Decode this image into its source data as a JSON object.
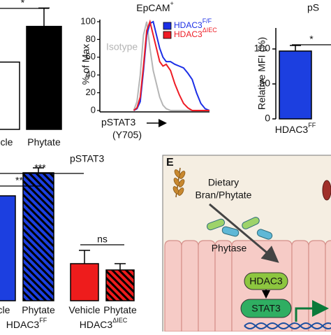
{
  "chart_data": [
    {
      "type": "bar",
      "categories": [
        "hicle",
        "Phytate"
      ],
      "values": [
        66,
        101
      ],
      "errors": [
        null,
        18
      ],
      "colors": [
        "#ffffff",
        "#000000"
      ],
      "ylim": [
        0,
        120
      ],
      "annotations": [
        "*"
      ]
    },
    {
      "type": "line",
      "title": "EpCAM",
      "title_sup": "+",
      "ylabel": "% of Max",
      "xlabel": "pSTAT3",
      "xlabel2": "(Y705)",
      "x": [
        30,
        33,
        36,
        39,
        42,
        45,
        48,
        51,
        54,
        57,
        60,
        64,
        68,
        72,
        76,
        80,
        84,
        88,
        92,
        96,
        100
      ],
      "xlim": [
        0,
        100
      ],
      "ylim": [
        0,
        100
      ],
      "yticks": [
        0,
        20,
        40,
        60,
        80,
        100
      ],
      "series": [
        {
          "name": "Isotype",
          "color": "#b5b5b5",
          "values": [
            0,
            10,
            40,
            85,
            100,
            70,
            45,
            30,
            15,
            6,
            2,
            0,
            0,
            0,
            0,
            0,
            0,
            0,
            0,
            0,
            0
          ]
        },
        {
          "name": "HDAC3",
          "name_sup": "F/F",
          "color": "#1c2fe6",
          "values": [
            0,
            2,
            10,
            45,
            85,
            98,
            100,
            85,
            70,
            60,
            55,
            55,
            52,
            50,
            48,
            42,
            35,
            20,
            8,
            2,
            0
          ]
        },
        {
          "name": "HDAC3",
          "name_sup": "ΔIEC",
          "color": "#ee1c25",
          "values": [
            0,
            3,
            15,
            50,
            90,
            100,
            85,
            70,
            55,
            50,
            52,
            45,
            30,
            18,
            8,
            3,
            0,
            0,
            0,
            0,
            0
          ]
        }
      ]
    },
    {
      "type": "bar",
      "title": "pS",
      "ylabel": "Relative MFI (%)",
      "categories": [
        "HDAC3"
      ],
      "category_sups": [
        "FF"
      ],
      "values": [
        97
      ],
      "errors": [
        8
      ],
      "colors": [
        "#1c3fe0"
      ],
      "ylim": [
        0,
        130
      ],
      "yticks": [
        0,
        50,
        100
      ],
      "annotations": [
        "*"
      ]
    },
    {
      "type": "bar",
      "title": "pSTAT3",
      "categories": [
        "hicle",
        "Phytate",
        "Vehicle",
        "Phytate"
      ],
      "values": [
        75,
        91.5,
        26.5,
        22
      ],
      "errors": [
        null,
        3.5,
        9.5,
        4.5
      ],
      "colors": [
        "#1c3fe0",
        "#1c3fe0",
        "#ee1c1c",
        "#ee1c1c"
      ],
      "hatched": [
        false,
        true,
        false,
        true
      ],
      "ylim": [
        0,
        100
      ],
      "groups": [
        {
          "label": "HDAC3",
          "sup": "FF"
        },
        {
          "label": "HDAC3",
          "sup": "ΔIEC"
        }
      ],
      "annotations": [
        "***",
        "**",
        "ns"
      ]
    }
  ],
  "diagram": {
    "label": "E",
    "food": "Dietary",
    "food2": "Bran/Phytate",
    "enzyme": "Phytase",
    "nodes": [
      "HDAC3",
      "STAT3"
    ]
  }
}
